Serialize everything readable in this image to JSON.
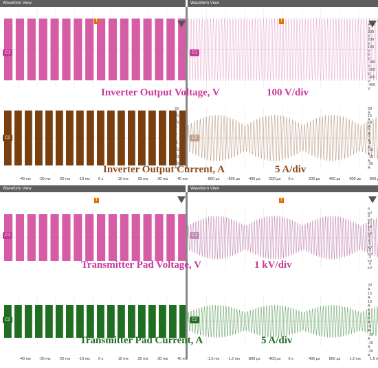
{
  "window_title": "Waveform View",
  "colors": {
    "voltage": "#d65ca6",
    "voltage_zoom": "#e8b2d2",
    "current": "#7a3f0e",
    "current_zoom": "#bfa08a",
    "pad_voltage": "#d65ca6",
    "pad_voltage_zoom": "#c48cb3",
    "pad_current": "#1f6e21",
    "pad_current_zoom": "#6ea86e",
    "label_magenta": "#c7389a",
    "label_brown": "#8b4a1b",
    "label_green": "#1f6e21"
  },
  "top": {
    "left_title": "Waveform View",
    "right_title": "Waveform View",
    "channel1": "C1",
    "channel2": "C2",
    "voltage_label": "Inverter Output Voltage, V",
    "voltage_scale": "100 V/div",
    "current_label": "Inverter Output Current, A",
    "current_scale": "5 A/div",
    "voltage_right_ticks": [
      "400 V",
      "300 V",
      "200 V",
      "100 V",
      "0 V",
      "-100 V",
      "-200 V",
      "-300 V",
      "-400 V"
    ],
    "current_left_ticks": [
      "20 A",
      "15 A",
      "10 A",
      "5 A",
      "0 A",
      "-5 A",
      "-10 A",
      "-15 A",
      "-20 A"
    ],
    "current_right_ticks": [
      "20 A",
      "15 A",
      "10 A",
      "5 A",
      "0 A",
      "-5 A",
      "-10 A",
      "-15 A",
      "-20 A"
    ],
    "x_left": [
      "-40 ms",
      "-30 ms",
      "-20 ms",
      "-10 ms",
      "0 s",
      "10 ms",
      "20 ms",
      "30 ms",
      "40 ms"
    ],
    "x_right": [
      "-800 µs",
      "-600 µs",
      "-400 µs",
      "-200 µs",
      "0 s",
      "200 µs",
      "400 µs",
      "600 µs",
      "800 µs"
    ]
  },
  "bottom": {
    "left_title": "Waveform View",
    "right_title": "Waveform View",
    "channel1": "C1",
    "channel2": "C2",
    "voltage_label": "Transmitter Pad Voltage, V",
    "voltage_scale": "1 kV/div",
    "current_label": "Transmitter Pad Current, A",
    "current_scale": "5 A/div",
    "voltage_right_ticks": [
      "4 kV",
      "3 kV",
      "2 kV",
      "1 kV",
      "0 V",
      "-1 kV",
      "-2 kV",
      "-3 kV",
      "-4 kV"
    ],
    "current_right_ticks": [
      "20 A",
      "15 A",
      "10 A",
      "5 A",
      "0 A",
      "-5 A",
      "-10 A",
      "-15 A",
      "-20 A"
    ],
    "x_left": [
      "-40 ms",
      "-30 ms",
      "-20 ms",
      "-10 ms",
      "0 s",
      "10 ms",
      "20 ms",
      "30 ms",
      "40 ms"
    ],
    "x_right": [
      "-1.6 ms",
      "-1.2 ms",
      "-800 µs",
      "-400 µs",
      "0 s",
      "400 µs",
      "800 µs",
      "1.2 ms",
      "1.6 ms"
    ]
  }
}
